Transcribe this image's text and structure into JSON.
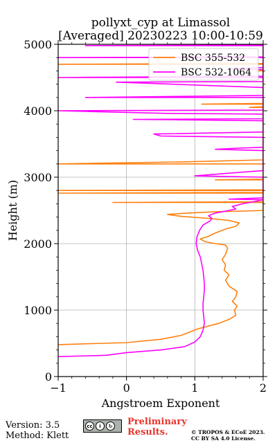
{
  "header": {
    "title_line1": "pollyxt_cyp at Limassol",
    "title_line2": "[Averaged] 20230223 10:00-10:59"
  },
  "footer": {
    "version": "Version: 3.5",
    "method": "Method: Klett",
    "license_badge": "cc-by-sa-badge",
    "badge_text": "BY SA",
    "preliminary_line1": "Preliminary",
    "preliminary_line2": "Results.",
    "copyright_line1": "© TROPOS & ECoE 2023.",
    "copyright_line2": "CC BY SA 4.0 License.",
    "preliminary_color": "#e8342c"
  },
  "chart_data": {
    "type": "line",
    "xlabel": "Angstroem Exponent",
    "ylabel": "Height (m)",
    "xlim": [
      -1,
      2
    ],
    "ylim": [
      0,
      5000
    ],
    "xticks": [
      "−1",
      "0",
      "1",
      "2"
    ],
    "yticks": [
      "0",
      "1000",
      "2000",
      "3000",
      "4000",
      "5000"
    ],
    "grid": true,
    "legend_position": "top-right",
    "series": [
      {
        "name": "BSC 355-532",
        "color": "#ff7f0e",
        "points": [
          [
            -1.0,
            480
          ],
          [
            0.0,
            510
          ],
          [
            0.5,
            560
          ],
          [
            0.8,
            620
          ],
          [
            1.05,
            720
          ],
          [
            1.35,
            800
          ],
          [
            1.5,
            860
          ],
          [
            1.6,
            920
          ],
          [
            1.58,
            1000
          ],
          [
            1.62,
            1060
          ],
          [
            1.55,
            1130
          ],
          [
            1.6,
            1200
          ],
          [
            1.62,
            1280
          ],
          [
            1.5,
            1360
          ],
          [
            1.45,
            1450
          ],
          [
            1.5,
            1530
          ],
          [
            1.43,
            1600
          ],
          [
            1.45,
            1680
          ],
          [
            1.4,
            1760
          ],
          [
            1.45,
            1840
          ],
          [
            1.48,
            1930
          ],
          [
            1.45,
            1980
          ],
          [
            1.3,
            2000
          ],
          [
            1.15,
            2030
          ],
          [
            1.08,
            2070
          ],
          [
            1.2,
            2110
          ],
          [
            1.3,
            2160
          ],
          [
            1.45,
            2220
          ],
          [
            1.6,
            2260
          ],
          [
            1.65,
            2310
          ],
          [
            1.5,
            2350
          ],
          [
            1.2,
            2380
          ],
          [
            0.8,
            2410
          ],
          [
            0.6,
            2440
          ],
          [
            0.9,
            2460
          ],
          [
            1.3,
            2480
          ],
          [
            1.7,
            2490
          ],
          [
            2.0,
            2500
          ],
          [
            2.0,
            2620
          ],
          [
            -0.2,
            2620
          ],
          [
            2.0,
            2630
          ],
          [
            2.0,
            2760
          ],
          [
            -1.0,
            2760
          ],
          [
            2.0,
            2770
          ],
          [
            2.0,
            2800
          ],
          [
            -1.0,
            2800
          ],
          [
            2.0,
            2810
          ],
          [
            2.0,
            2960
          ],
          [
            1.3,
            2960
          ],
          [
            2.0,
            2970
          ],
          [
            2.0,
            3200
          ],
          [
            -1.0,
            3200
          ],
          [
            0.8,
            3230
          ],
          [
            2.0,
            3260
          ],
          [
            2.0,
            4050
          ],
          [
            1.8,
            4050
          ],
          [
            2.0,
            4060
          ],
          [
            2.0,
            4100
          ],
          [
            1.1,
            4100
          ],
          [
            2.0,
            4110
          ],
          [
            2.0,
            4600
          ],
          [
            1.9,
            4600
          ],
          [
            2.0,
            4610
          ],
          [
            2.0,
            4700
          ],
          [
            -1.0,
            4700
          ],
          [
            2.0,
            4710
          ]
        ]
      },
      {
        "name": "BSC 532-1064",
        "color": "#ff00ff",
        "points": [
          [
            -1.0,
            300
          ],
          [
            -0.3,
            320
          ],
          [
            0.0,
            360
          ],
          [
            0.5,
            400
          ],
          [
            0.85,
            450
          ],
          [
            1.0,
            520
          ],
          [
            1.08,
            600
          ],
          [
            1.12,
            700
          ],
          [
            1.14,
            800
          ],
          [
            1.13,
            900
          ],
          [
            1.12,
            1000
          ],
          [
            1.12,
            1100
          ],
          [
            1.13,
            1200
          ],
          [
            1.14,
            1300
          ],
          [
            1.14,
            1400
          ],
          [
            1.13,
            1500
          ],
          [
            1.12,
            1600
          ],
          [
            1.1,
            1700
          ],
          [
            1.08,
            1800
          ],
          [
            1.04,
            1900
          ],
          [
            1.02,
            2000
          ],
          [
            1.03,
            2100
          ],
          [
            1.07,
            2200
          ],
          [
            1.12,
            2280
          ],
          [
            1.22,
            2340
          ],
          [
            1.25,
            2380
          ],
          [
            1.2,
            2420
          ],
          [
            1.3,
            2460
          ],
          [
            1.6,
            2520
          ],
          [
            1.55,
            2560
          ],
          [
            1.7,
            2600
          ],
          [
            1.9,
            2640
          ],
          [
            2.0,
            2660
          ],
          [
            1.5,
            2670
          ],
          [
            2.0,
            2690
          ],
          [
            2.0,
            3000
          ],
          [
            1.0,
            3020
          ],
          [
            1.5,
            3060
          ],
          [
            2.0,
            3100
          ],
          [
            2.0,
            3400
          ],
          [
            1.3,
            3420
          ],
          [
            1.7,
            3440
          ],
          [
            2.0,
            3450
          ],
          [
            2.0,
            3600
          ],
          [
            0.5,
            3620
          ],
          [
            0.4,
            3650
          ],
          [
            2.0,
            3680
          ],
          [
            2.0,
            3850
          ],
          [
            0.1,
            3870
          ],
          [
            2.0,
            3880
          ],
          [
            2.0,
            3950
          ],
          [
            0.6,
            3960
          ],
          [
            -1.0,
            4000
          ],
          [
            2.0,
            4010
          ],
          [
            2.0,
            4200
          ],
          [
            -0.6,
            4200
          ],
          [
            2.0,
            4230
          ],
          [
            2.0,
            4350
          ],
          [
            -0.15,
            4430
          ],
          [
            2.0,
            4440
          ],
          [
            2.0,
            4500
          ],
          [
            -1.0,
            4500
          ],
          [
            2.0,
            4520
          ],
          [
            2.0,
            4650
          ],
          [
            1.5,
            4630
          ],
          [
            2.0,
            4620
          ],
          [
            2.0,
            4800
          ],
          [
            -1.0,
            4800
          ],
          [
            2.0,
            4810
          ],
          [
            2.0,
            4980
          ],
          [
            -0.6,
            4980
          ],
          [
            2.0,
            4990
          ]
        ]
      }
    ]
  }
}
